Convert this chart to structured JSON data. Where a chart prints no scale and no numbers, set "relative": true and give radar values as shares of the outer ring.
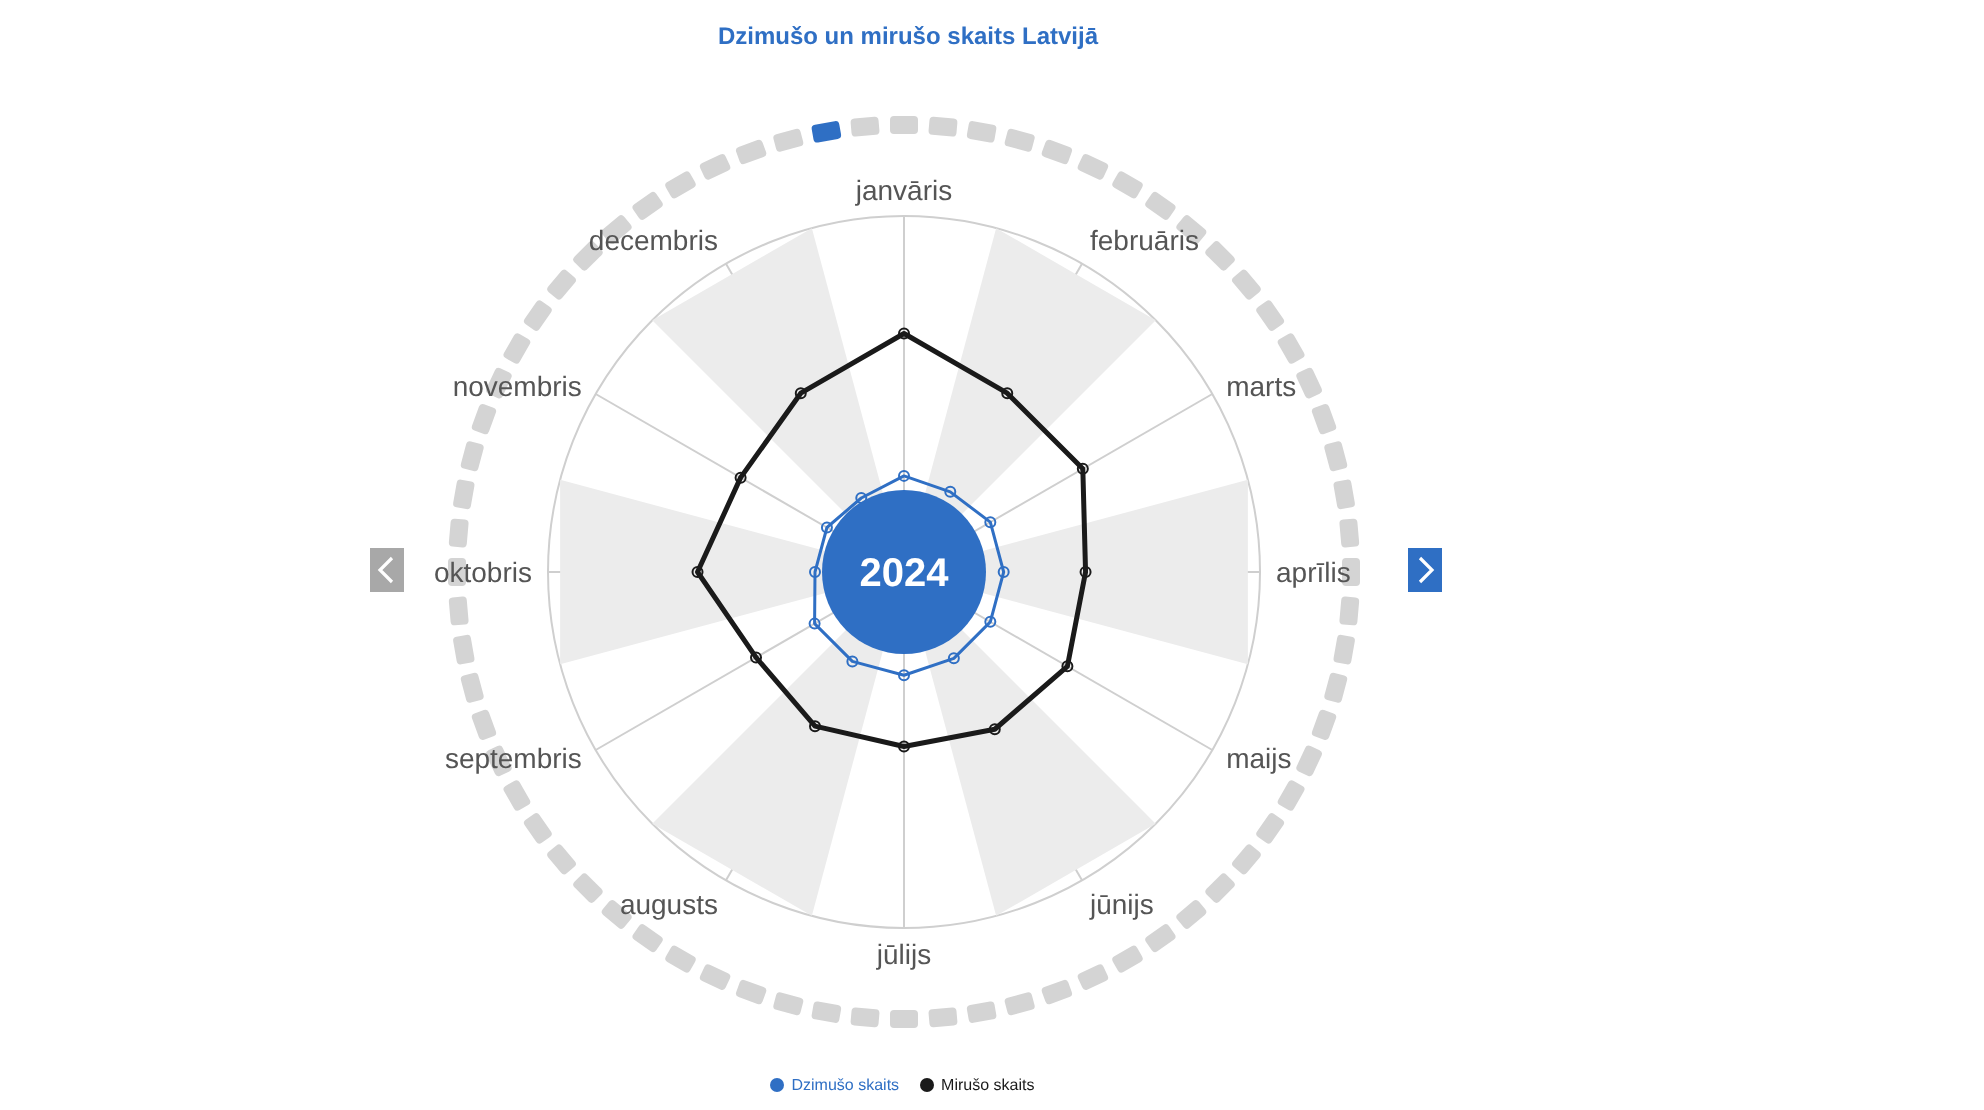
{
  "chart_data": {
    "type": "radar",
    "title": "Dzimušo un mirušo skaits Latvijā",
    "relative": true,
    "categories": [
      "janvāris",
      "februāris",
      "marts",
      "aprīlis",
      "maijs",
      "jūnijs",
      "jūlijs",
      "augusts",
      "septembris",
      "oktobris",
      "novembris",
      "decembris"
    ],
    "series": [
      {
        "name": "Dzimušo skaits",
        "color": "#2f6fc4",
        "values": [
          0.27,
          0.26,
          0.28,
          0.28,
          0.28,
          0.28,
          0.29,
          0.29,
          0.29,
          0.25,
          0.25,
          0.24
        ]
      },
      {
        "name": "Mirušo skaits",
        "color": "#1a1a1a",
        "values": [
          0.67,
          0.58,
          0.58,
          0.51,
          0.53,
          0.51,
          0.49,
          0.5,
          0.48,
          0.58,
          0.53,
          0.58
        ]
      }
    ],
    "annotations": [
      "2024"
    ],
    "legend": "bottom",
    "marker": "circle",
    "grid": true
  }
}
